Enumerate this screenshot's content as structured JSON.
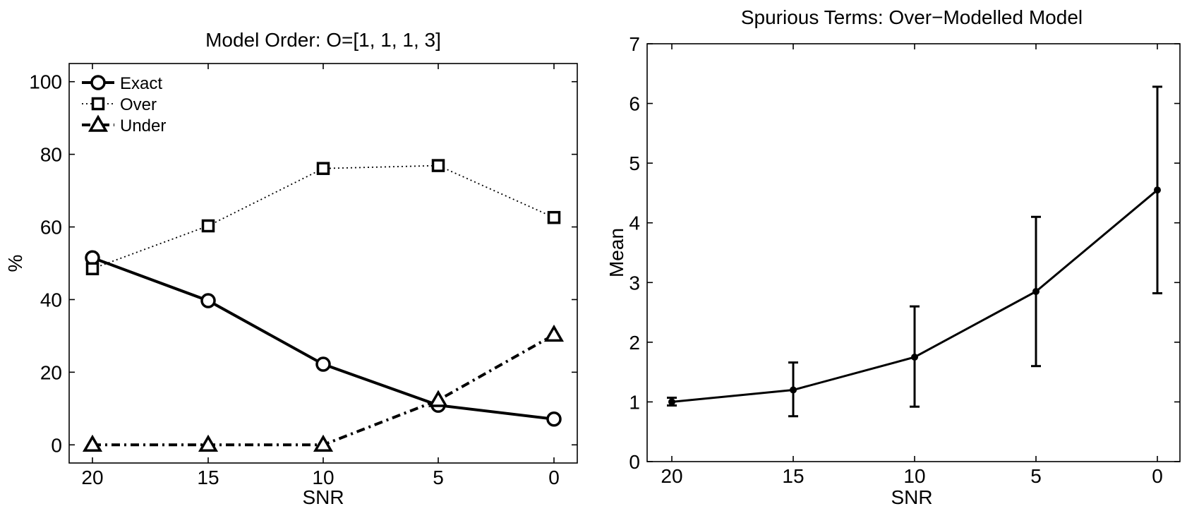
{
  "chart_data": [
    {
      "type": "line",
      "title": "Model Order: O=[1, 1, 1, 3]",
      "xlabel": "SNR",
      "ylabel": "%",
      "categories": [
        "20",
        "15",
        "10",
        "5",
        "0"
      ],
      "xlim": [
        20,
        0
      ],
      "ylim": [
        -5,
        105
      ],
      "yticks": [
        0,
        20,
        40,
        60,
        80,
        100
      ],
      "legend_position": "top-left",
      "grid": false,
      "series": [
        {
          "name": "Exact",
          "values": [
            51.5,
            39.7,
            22.2,
            10.9,
            7.1
          ],
          "marker": "circle",
          "line": "solid"
        },
        {
          "name": "Over",
          "values": [
            48.5,
            60.3,
            76.1,
            76.9,
            62.6
          ],
          "marker": "square",
          "line": "dotted"
        },
        {
          "name": "Under",
          "values": [
            0,
            0,
            0,
            12.3,
            30.3
          ],
          "marker": "triangle",
          "line": "dashdot"
        }
      ]
    },
    {
      "type": "line",
      "title": "Spurious Terms: Over−Modelled Model",
      "xlabel": "SNR",
      "ylabel": "Mean",
      "categories": [
        "20",
        "15",
        "10",
        "5",
        "0"
      ],
      "xlim": [
        20,
        0
      ],
      "ylim": [
        0,
        7
      ],
      "yticks": [
        0,
        1,
        2,
        3,
        4,
        5,
        6,
        7
      ],
      "grid": false,
      "series": [
        {
          "values": [
            1.0,
            1.2,
            1.75,
            2.85,
            4.55
          ],
          "error_low": [
            0.94,
            0.76,
            0.92,
            1.6,
            2.82
          ],
          "error_high": [
            1.07,
            1.66,
            2.6,
            4.1,
            6.28
          ],
          "marker": "dot",
          "line": "solid"
        }
      ]
    }
  ]
}
